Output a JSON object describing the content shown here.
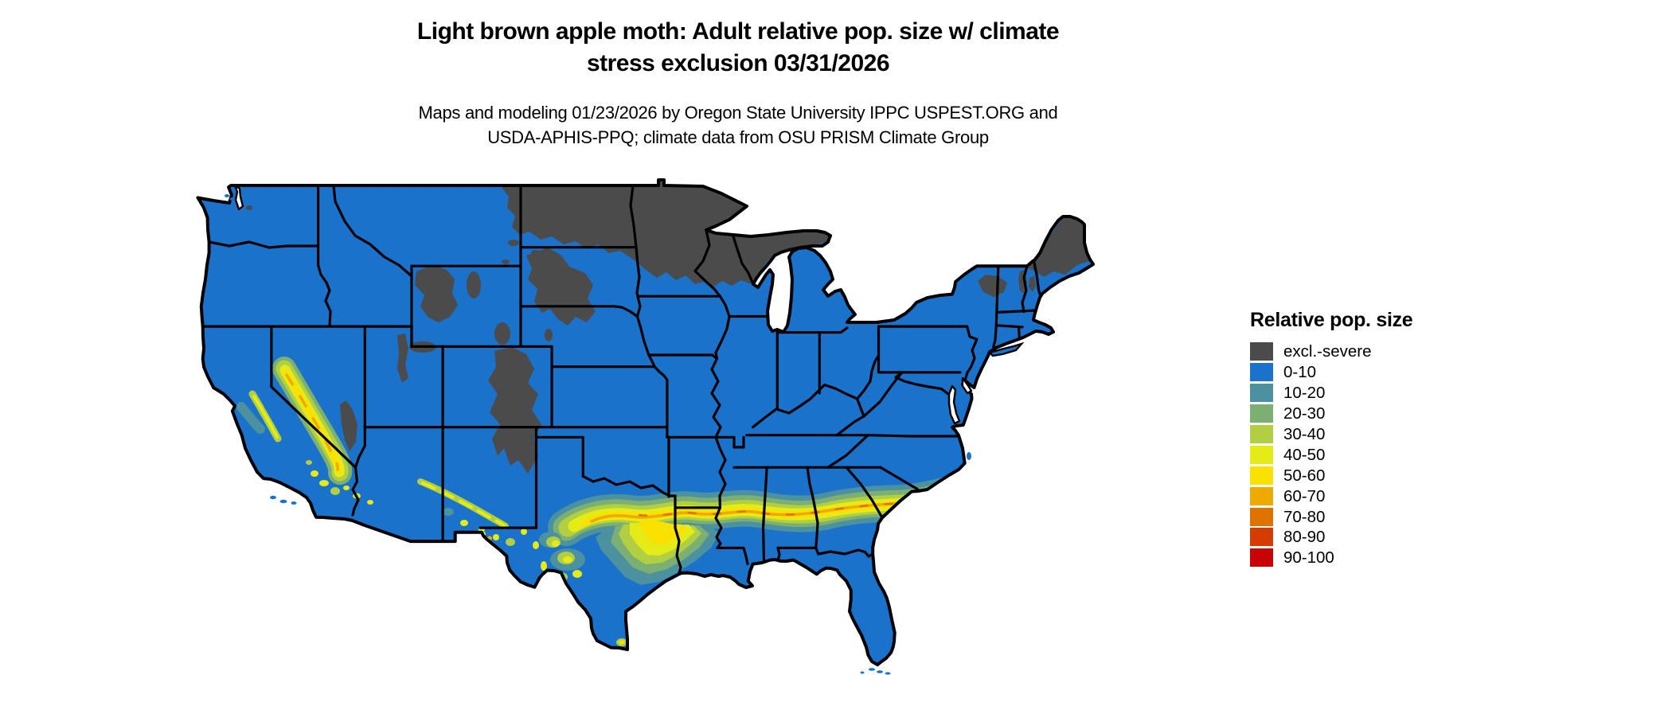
{
  "title": {
    "line1": "Light brown apple moth: Adult relative pop. size w/ climate",
    "line2": "stress exclusion 03/31/2026"
  },
  "subtitle": {
    "line1": "Maps and modeling 01/23/2026 by Oregon State University IPPC USPEST.ORG and",
    "line2": "USDA-APHIS-PPQ; climate data from OSU PRISM Climate Group"
  },
  "legend": {
    "title": "Relative pop. size",
    "items": [
      {
        "label": "excl.-severe",
        "color": "#4b4b4b"
      },
      {
        "label": "0-10",
        "color": "#1a72cb"
      },
      {
        "label": "10-20",
        "color": "#4b91a0"
      },
      {
        "label": "20-30",
        "color": "#7cb072"
      },
      {
        "label": "30-40",
        "color": "#b2cf44"
      },
      {
        "label": "40-50",
        "color": "#e4eb16"
      },
      {
        "label": "50-60",
        "color": "#fae100"
      },
      {
        "label": "60-70",
        "color": "#eeaa00"
      },
      {
        "label": "70-80",
        "color": "#e07300"
      },
      {
        "label": "80-90",
        "color": "#d53c00"
      },
      {
        "label": "90-100",
        "color": "#c80303"
      }
    ]
  },
  "map": {
    "colors": {
      "border": "#000000",
      "water": "#ffffff",
      "background": "#ffffff"
    }
  }
}
